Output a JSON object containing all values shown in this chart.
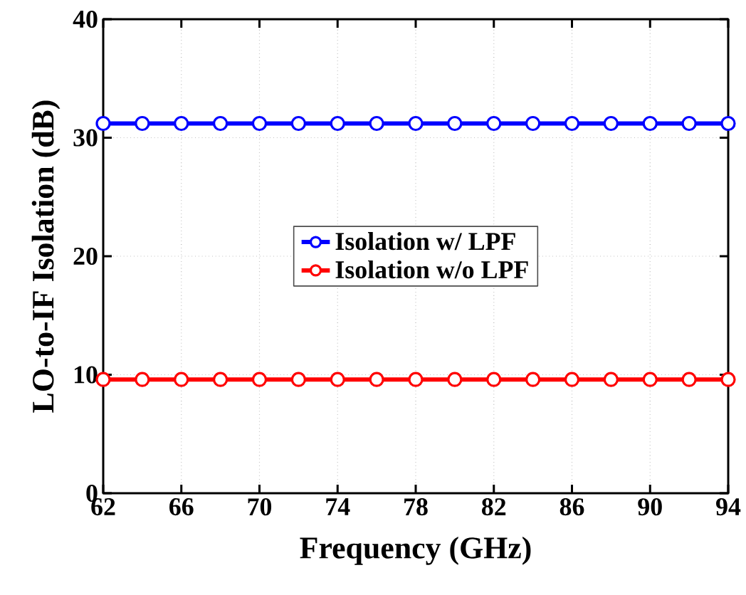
{
  "chart_data": {
    "type": "line",
    "xlabel": "Frequency (GHz)",
    "ylabel": "LO-to-IF Isolation (dB)",
    "x": [
      62,
      64,
      66,
      68,
      70,
      72,
      74,
      76,
      78,
      80,
      82,
      84,
      86,
      88,
      90,
      92,
      94
    ],
    "series": [
      {
        "name": "Isolation w/   LPF",
        "color": "#0000ff",
        "values": [
          31.2,
          31.2,
          31.2,
          31.2,
          31.2,
          31.2,
          31.2,
          31.2,
          31.2,
          31.2,
          31.2,
          31.2,
          31.2,
          31.2,
          31.2,
          31.2,
          31.2
        ]
      },
      {
        "name": "Isolation w/o LPF",
        "color": "#ff0000",
        "values": [
          9.6,
          9.6,
          9.6,
          9.6,
          9.6,
          9.6,
          9.6,
          9.6,
          9.6,
          9.6,
          9.6,
          9.6,
          9.6,
          9.6,
          9.6,
          9.6,
          9.6
        ]
      }
    ],
    "xlim": [
      62,
      94
    ],
    "ylim": [
      0,
      40
    ],
    "xticks": [
      62,
      66,
      70,
      74,
      78,
      82,
      86,
      90,
      94
    ],
    "yticks": [
      0,
      10,
      20,
      30,
      40
    ],
    "grid": true,
    "legend": "center",
    "marker": "circle",
    "line_style": "solid"
  }
}
